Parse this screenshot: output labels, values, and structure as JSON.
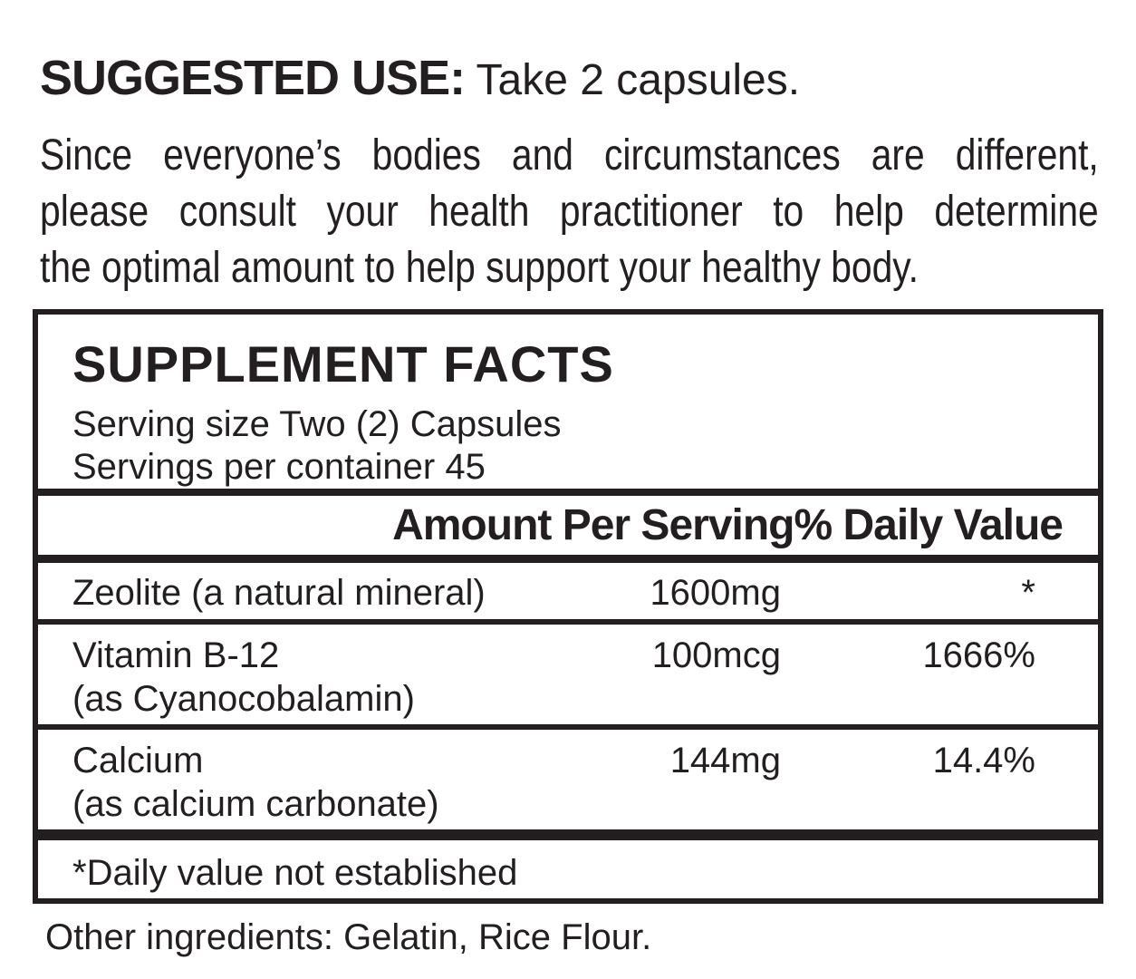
{
  "page": {
    "background_color": "#ffffff",
    "text_color": "#231f20",
    "border_color": "#231f20"
  },
  "suggested_use": {
    "label": "SUGGESTED USE:",
    "text": " Take 2 capsules."
  },
  "intro": {
    "lines": [
      "Since everyone’s bodies and circumstances are different,",
      "please consult your health practitioner to help determine",
      "the optimal amount to help support your healthy body."
    ]
  },
  "supplement_facts": {
    "title": "SUPPLEMENT FACTS",
    "serving_size": "Serving size Two (2) Capsules",
    "servings_per_container": "Servings per container 45",
    "column_headers": {
      "amount": "Amount Per Serving",
      "daily_value": "% Daily Value"
    },
    "rows": [
      {
        "name": "Zeolite (a natural mineral)",
        "detail": "",
        "amount": "1600mg",
        "daily_value": "*"
      },
      {
        "name": "Vitamin B-12",
        "detail": "(as Cyanocobalamin)",
        "amount": "100mcg",
        "daily_value": "1666%"
      },
      {
        "name": "Calcium",
        "detail": "(as calcium carbonate)",
        "amount": "144mg",
        "daily_value": "14.4%"
      }
    ],
    "footnote": "*Daily value not established"
  },
  "other_ingredients": "Other ingredients: Gelatin, Rice Flour."
}
